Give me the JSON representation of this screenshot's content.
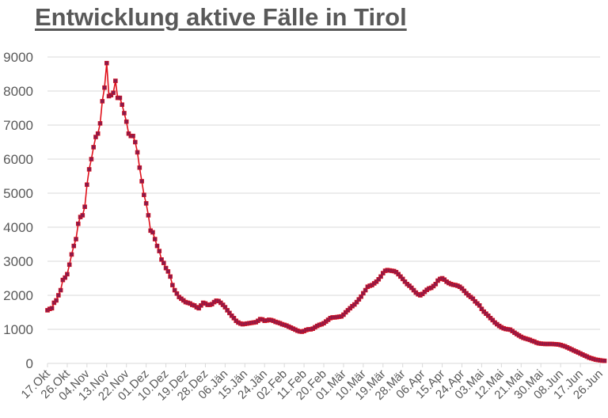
{
  "title": "Entwicklung aktive Fälle in Tirol",
  "colors": {
    "line": "#e0101a",
    "marker": "#8b1a4a",
    "grid": "#d9d9d9",
    "text": "#595959"
  },
  "chart_data": {
    "type": "line",
    "title": "Entwicklung aktive Fälle in Tirol",
    "xlabel": "",
    "ylabel": "",
    "ylim": [
      0,
      9000
    ],
    "yticks": [
      0,
      1000,
      2000,
      3000,
      4000,
      5000,
      6000,
      7000,
      8000,
      9000
    ],
    "grid": true,
    "legend": null,
    "x_tick_labels": [
      "17.Okt",
      "26.Okt",
      "04.Nov",
      "13.Nov",
      "22.Nov",
      "01.Dez",
      "10.Dez",
      "19.Dez",
      "28.Dez",
      "06.Jän",
      "15.Jän",
      "24.Jän",
      "02.Feb",
      "11.Feb",
      "20.Feb",
      "01.Mär",
      "10.Mär",
      "19.Mär",
      "28.Mär",
      "06.Apr",
      "15.Apr",
      "24.Apr",
      "03.Mai",
      "12.Mai",
      "21.Mai",
      "30.Mai",
      "08.Jun",
      "17.Jun",
      "26.Jun"
    ],
    "tick_interval_days": 9,
    "series": [
      {
        "name": "Aktive Fälle",
        "start": "17.Okt",
        "step_days": 1,
        "values": [
          1560,
          1600,
          1620,
          1780,
          1850,
          2000,
          2150,
          2450,
          2520,
          2620,
          2900,
          3200,
          3450,
          3650,
          4100,
          4300,
          4350,
          4600,
          5250,
          5700,
          6000,
          6350,
          6650,
          6750,
          7050,
          7700,
          8100,
          8820,
          7850,
          7880,
          7950,
          8300,
          7800,
          7800,
          7600,
          7350,
          7100,
          6750,
          6680,
          6680,
          6500,
          6200,
          5750,
          5350,
          4950,
          4700,
          4350,
          3900,
          3850,
          3650,
          3450,
          3300,
          3050,
          2950,
          2800,
          2700,
          2550,
          2300,
          2150,
          2050,
          1950,
          1900,
          1850,
          1800,
          1780,
          1760,
          1720,
          1700,
          1650,
          1620,
          1700,
          1780,
          1760,
          1720,
          1720,
          1740,
          1800,
          1840,
          1830,
          1780,
          1720,
          1650,
          1560,
          1480,
          1400,
          1330,
          1250,
          1200,
          1170,
          1150,
          1160,
          1170,
          1180,
          1190,
          1200,
          1210,
          1250,
          1300,
          1290,
          1250,
          1260,
          1280,
          1270,
          1250,
          1220,
          1200,
          1180,
          1150,
          1130,
          1110,
          1080,
          1050,
          1020,
          990,
          960,
          940,
          930,
          950,
          980,
          1000,
          1000,
          1020,
          1060,
          1100,
          1130,
          1150,
          1180,
          1230,
          1280,
          1330,
          1350,
          1350,
          1360,
          1370,
          1380,
          1430,
          1500,
          1560,
          1620,
          1680,
          1730,
          1800,
          1880,
          1960,
          2060,
          2150,
          2250,
          2280,
          2300,
          2350,
          2400,
          2470,
          2550,
          2650,
          2720,
          2740,
          2730,
          2720,
          2710,
          2680,
          2620,
          2550,
          2480,
          2400,
          2330,
          2280,
          2220,
          2150,
          2080,
          2030,
          2000,
          2040,
          2100,
          2160,
          2200,
          2220,
          2270,
          2330,
          2430,
          2480,
          2500,
          2460,
          2400,
          2360,
          2330,
          2310,
          2300,
          2280,
          2250,
          2200,
          2130,
          2060,
          2000,
          1950,
          1900,
          1820,
          1760,
          1700,
          1600,
          1520,
          1460,
          1400,
          1330,
          1270,
          1200,
          1150,
          1100,
          1060,
          1030,
          1010,
          1000,
          990,
          950,
          900,
          860,
          820,
          780,
          750,
          730,
          710,
          690,
          660,
          640,
          610,
          590,
          580,
          575,
          570,
          570,
          570,
          570,
          565,
          560,
          555,
          540,
          520,
          500,
          470,
          440,
          410,
          380,
          350,
          320,
          290,
          260,
          230,
          200,
          170,
          150,
          130,
          110,
          100,
          90,
          80,
          75
        ]
      }
    ]
  }
}
